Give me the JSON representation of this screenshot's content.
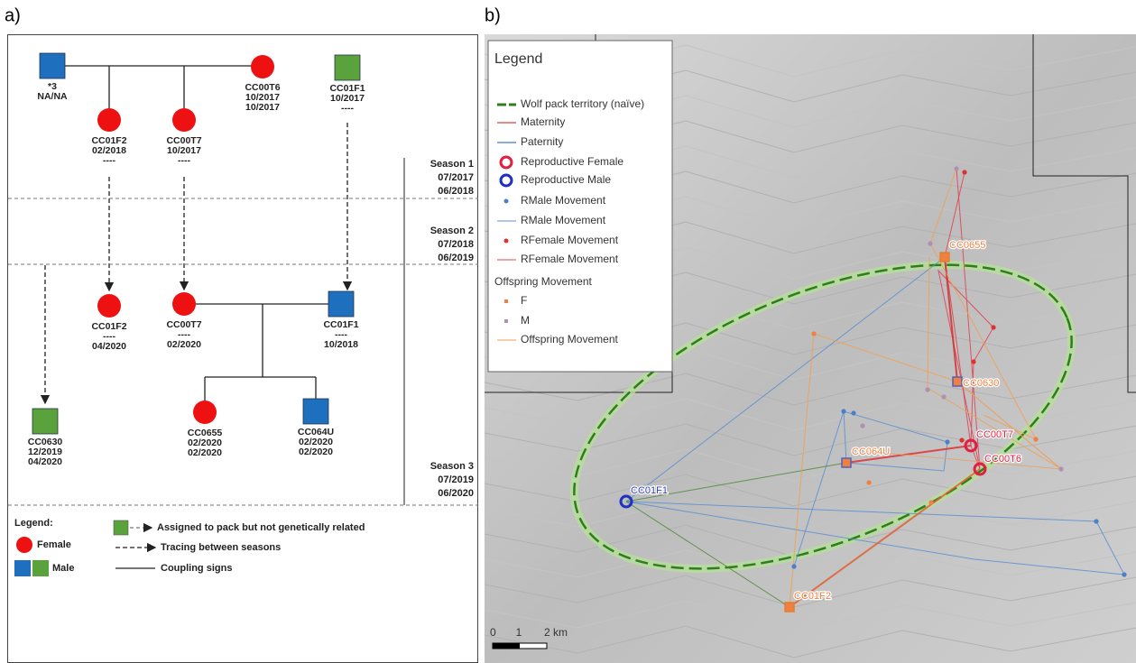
{
  "panel_a": {
    "label": "a)",
    "nodes": [
      {
        "label": "*3",
        "dates": [
          "NA/NA"
        ]
      },
      {
        "label": "CC00T6",
        "dates": [
          "10/2017",
          "10/2017"
        ]
      },
      {
        "label": "CC01F1",
        "dates": [
          "10/2017",
          "----"
        ]
      },
      {
        "label": "CC01F2",
        "dates": [
          "02/2018",
          "----"
        ]
      },
      {
        "label": "CC00T7",
        "dates": [
          "10/2017",
          "----"
        ]
      },
      {
        "label": "CC01F2",
        "dates": [
          "----",
          "04/2020"
        ]
      },
      {
        "label": "CC00T7",
        "dates": [
          "----",
          "02/2020"
        ]
      },
      {
        "label": "CC01F1",
        "dates": [
          "----",
          "10/2018"
        ]
      },
      {
        "label": "CC0630",
        "dates": [
          "12/2019",
          "04/2020"
        ]
      },
      {
        "label": "CC0655",
        "dates": [
          "02/2020",
          "02/2020"
        ]
      },
      {
        "label": "CC064U",
        "dates": [
          "02/2020",
          "02/2020"
        ]
      }
    ],
    "seasons": [
      {
        "name": "Season 1",
        "start": "07/2017",
        "end": "06/2018"
      },
      {
        "name": "Season 2",
        "start": "07/2018",
        "end": "06/2019"
      },
      {
        "name": "Season 3",
        "start": "07/2019",
        "end": "06/2020"
      }
    ],
    "legend": {
      "title": "Legend:",
      "female": "Female",
      "male": "Male",
      "assigned": "Assigned to pack but not genetically related",
      "tracing": "Tracing between seasons",
      "coupling": "Coupling signs"
    }
  },
  "panel_b": {
    "label": "b)",
    "legend": {
      "title": "Legend",
      "items": [
        "Wolf pack territory (naïve)",
        "Maternity",
        "Paternity",
        "Reproductive Female",
        "Reproductive Male",
        "RMale Movement",
        "RMale Movement",
        "RFemale Movement",
        "RFemale Movement",
        "Offspring Movement",
        "F",
        "M",
        "Offspring Movement"
      ]
    },
    "map_labels": [
      "CC0655",
      "CC0630",
      "CC00T7",
      "CC00T6",
      "CC064U",
      "CC01F1",
      "CC01F2"
    ],
    "scale": [
      "0",
      "1",
      "2 km"
    ]
  }
}
